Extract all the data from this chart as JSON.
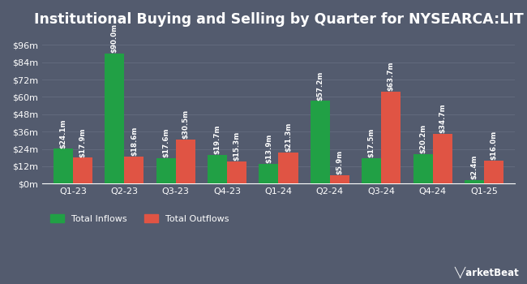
{
  "title": "Institutional Buying and Selling by Quarter for NYSEARCA:LIT",
  "quarters": [
    "Q1-23",
    "Q2-23",
    "Q3-23",
    "Q4-23",
    "Q1-24",
    "Q2-24",
    "Q3-24",
    "Q4-24",
    "Q1-25"
  ],
  "inflows": [
    24.1,
    90.0,
    17.6,
    19.7,
    13.9,
    57.2,
    17.5,
    20.2,
    2.4
  ],
  "outflows": [
    17.9,
    18.6,
    30.5,
    15.3,
    21.3,
    5.9,
    63.7,
    34.7,
    16.0
  ],
  "inflow_labels": [
    "$24.1m",
    "$90.0m",
    "$17.6m",
    "$19.7m",
    "$13.9m",
    "$57.2m",
    "$17.5m",
    "$20.2m",
    "$2.4m"
  ],
  "outflow_labels": [
    "$17.9m",
    "$18.6m",
    "$30.5m",
    "$15.3m",
    "$21.3m",
    "$5.9m",
    "$63.7m",
    "$34.7m",
    "$16.0m"
  ],
  "inflow_color": "#21a045",
  "outflow_color": "#e05444",
  "background_color": "#535b6e",
  "plot_bg_color": "#535b6e",
  "text_color": "#ffffff",
  "grid_color": "#626a7d",
  "yticks": [
    0,
    12,
    24,
    36,
    48,
    60,
    72,
    84,
    96
  ],
  "ytick_labels": [
    "$0m",
    "$12m",
    "$24m",
    "$36m",
    "$48m",
    "$60m",
    "$72m",
    "$84m",
    "$96m"
  ],
  "ylim": [
    0,
    103
  ],
  "bar_width": 0.38,
  "legend_inflow": "Total Inflows",
  "legend_outflow": "Total Outflows",
  "title_fontsize": 12.5,
  "label_fontsize": 6.2,
  "tick_fontsize": 8,
  "legend_fontsize": 8
}
